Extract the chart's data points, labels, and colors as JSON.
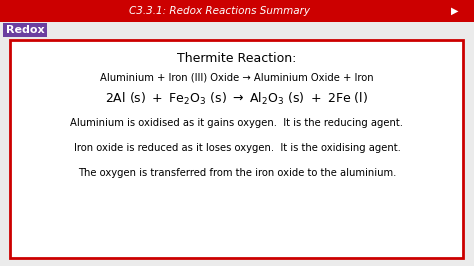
{
  "title": "C3.3.1: Redox Reactions Summary",
  "title_color": "#ffffff",
  "title_bg": "#cc0000",
  "bg_color": "#c8c8c8",
  "main_bg": "#ebebeb",
  "redox_label": "Redox",
  "redox_bg": "#6b3fa0",
  "redox_text_color": "#ffffff",
  "box_border_color": "#cc0000",
  "box_bg": "#ffffff",
  "heading": "Thermite Reaction:",
  "line1": "Aluminium + Iron (III) Oxide → Aluminium Oxide + Iron",
  "line3": "Aluminium is oxidised as it gains oxygen.  It is the reducing agent.",
  "line4": "Iron oxide is reduced as it loses oxygen.  It is the oxidising agent.",
  "line5": "The oxygen is transferred from the iron oxide to the aluminium.",
  "text_color": "#000000",
  "font_size_title": 7.5,
  "font_size_heading": 9.0,
  "font_size_body": 7.2,
  "font_size_equation": 9.0,
  "font_size_redox": 8.0
}
